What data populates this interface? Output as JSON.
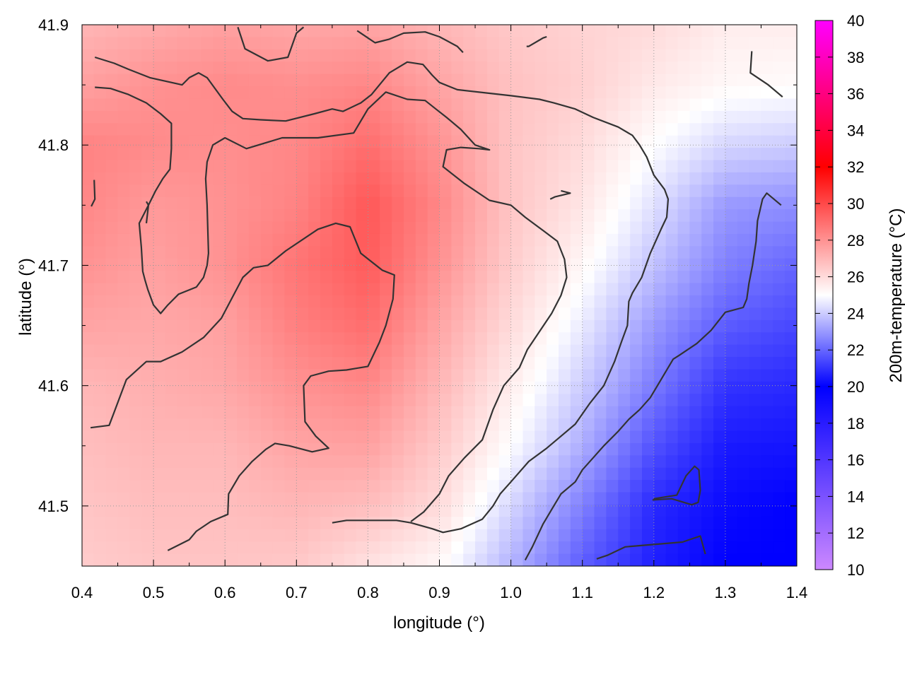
{
  "chart_data": {
    "type": "heatmap",
    "title": "",
    "xlabel": "longitude (°)",
    "ylabel": "latitude (°)",
    "colorbar_label": "200m-temperature (°C)",
    "xlim": [
      0.4,
      1.4
    ],
    "ylim": [
      41.45,
      41.9
    ],
    "x_ticks": [
      0.4,
      0.5,
      0.6,
      0.7,
      0.8,
      0.9,
      1.0,
      1.1,
      1.2,
      1.3,
      1.4
    ],
    "x_tick_labels": [
      "0.4",
      "0.5",
      "0.6",
      "0.7",
      "0.8",
      "0.9",
      "1.0",
      "1.1",
      "1.2",
      "1.3",
      "1.4"
    ],
    "y_ticks": [
      41.5,
      41.6,
      41.7,
      41.8,
      41.9
    ],
    "y_tick_labels": [
      "41.5",
      "41.6",
      "41.7",
      "41.8",
      "41.9"
    ],
    "colorbar_range": [
      10,
      40
    ],
    "colorbar_ticks": [
      10,
      12,
      14,
      16,
      18,
      20,
      22,
      24,
      26,
      28,
      30,
      32,
      34,
      36,
      38,
      40
    ],
    "colorbar_tick_labels": [
      "10",
      "12",
      "14",
      "16",
      "18",
      "20",
      "22",
      "24",
      "26",
      "28",
      "30",
      "32",
      "34",
      "36",
      "38",
      "40"
    ],
    "colorscale": [
      {
        "value": 10,
        "color": "#cc88ff"
      },
      {
        "value": 20,
        "color": "#0000ff"
      },
      {
        "value": 25,
        "color": "#ffffff"
      },
      {
        "value": 32,
        "color": "#ff0000"
      },
      {
        "value": 40,
        "color": "#ff00ff"
      }
    ],
    "grid": true,
    "temperature_field": {
      "lon": [
        0.4,
        0.5,
        0.6,
        0.7,
        0.8,
        0.9,
        1.0,
        1.1,
        1.2,
        1.3,
        1.4
      ],
      "lat": [
        41.9,
        41.85,
        41.8,
        41.75,
        41.7,
        41.65,
        41.6,
        41.55,
        41.5,
        41.45
      ],
      "values": [
        [
          27.0,
          27.3,
          27.6,
          27.4,
          27.5,
          27.0,
          26.5,
          26.2,
          26.0,
          25.5,
          25.5
        ],
        [
          27.6,
          28.0,
          28.2,
          28.1,
          28.3,
          27.5,
          26.7,
          26.3,
          25.6,
          25.2,
          25.1
        ],
        [
          28.4,
          28.2,
          28.1,
          28.3,
          29.0,
          28.0,
          26.6,
          26.0,
          25.0,
          24.2,
          24.0
        ],
        [
          28.3,
          27.8,
          28.0,
          28.4,
          29.6,
          28.3,
          26.6,
          25.7,
          24.4,
          23.0,
          22.8
        ],
        [
          28.0,
          27.6,
          28.0,
          28.8,
          29.5,
          28.0,
          26.4,
          25.2,
          23.8,
          22.5,
          22.0
        ],
        [
          27.5,
          27.4,
          27.6,
          28.5,
          29.0,
          27.5,
          26.0,
          24.6,
          23.0,
          21.8,
          21.4
        ],
        [
          27.0,
          27.2,
          27.4,
          28.0,
          28.3,
          27.0,
          25.5,
          24.0,
          22.4,
          21.0,
          20.8
        ],
        [
          26.8,
          27.0,
          27.0,
          27.5,
          27.6,
          26.5,
          25.0,
          23.4,
          21.6,
          20.5,
          20.4
        ],
        [
          26.6,
          26.8,
          26.8,
          27.0,
          26.8,
          26.0,
          24.2,
          22.5,
          20.8,
          20.2,
          20.0
        ],
        [
          26.4,
          26.6,
          26.6,
          26.5,
          25.8,
          25.2,
          23.5,
          21.8,
          20.6,
          20.0,
          20.0
        ]
      ]
    },
    "contours": [
      [
        [
          0.418,
          41.873
        ],
        [
          0.445,
          41.868
        ],
        [
          0.465,
          41.863
        ],
        [
          0.495,
          41.856
        ],
        [
          0.54,
          41.85
        ],
        [
          0.55,
          41.856
        ],
        [
          0.563,
          41.86
        ],
        [
          0.575,
          41.856
        ],
        [
          0.597,
          41.838
        ],
        [
          0.61,
          41.828
        ],
        [
          0.625,
          41.822
        ],
        [
          0.65,
          41.821
        ],
        [
          0.685,
          41.82
        ],
        [
          0.725,
          41.826
        ],
        [
          0.75,
          41.83
        ],
        [
          0.765,
          41.828
        ],
        [
          0.79,
          41.835
        ],
        [
          0.805,
          41.842
        ],
        [
          0.83,
          41.86
        ],
        [
          0.855,
          41.869
        ],
        [
          0.877,
          41.867
        ],
        [
          0.89,
          41.858
        ],
        [
          0.9,
          41.852
        ],
        [
          0.925,
          41.846
        ],
        [
          0.97,
          41.843
        ],
        [
          1.0,
          41.841
        ],
        [
          1.04,
          41.838
        ],
        [
          1.06,
          41.835
        ],
        [
          1.09,
          41.83
        ],
        [
          1.115,
          41.823
        ],
        [
          1.15,
          41.815
        ],
        [
          1.17,
          41.808
        ],
        [
          1.18,
          41.8
        ],
        [
          1.19,
          41.79
        ],
        [
          1.2,
          41.775
        ],
        [
          1.215,
          41.763
        ],
        [
          1.22,
          41.755
        ],
        [
          1.218,
          41.74
        ],
        [
          1.21,
          41.73
        ],
        [
          1.195,
          41.71
        ],
        [
          1.183,
          41.69
        ],
        [
          1.17,
          41.677
        ],
        [
          1.165,
          41.67
        ],
        [
          1.163,
          41.65
        ],
        [
          1.155,
          41.637
        ],
        [
          1.145,
          41.62
        ],
        [
          1.13,
          41.6
        ],
        [
          1.11,
          41.585
        ],
        [
          1.09,
          41.568
        ],
        [
          1.07,
          41.558
        ],
        [
          1.05,
          41.548
        ],
        [
          1.025,
          41.537
        ],
        [
          1.0,
          41.52
        ],
        [
          0.985,
          41.51
        ],
        [
          0.975,
          41.5
        ],
        [
          0.96,
          41.489
        ],
        [
          0.93,
          41.481
        ],
        [
          0.905,
          41.478
        ],
        [
          0.89,
          41.481
        ],
        [
          0.86,
          41.486
        ],
        [
          0.84,
          41.488
        ],
        [
          0.8,
          41.488
        ],
        [
          0.77,
          41.488
        ],
        [
          0.75,
          41.486
        ]
      ],
      [
        [
          0.418,
          41.848
        ],
        [
          0.44,
          41.847
        ],
        [
          0.465,
          41.842
        ],
        [
          0.49,
          41.835
        ],
        [
          0.51,
          41.826
        ],
        [
          0.525,
          41.818
        ],
        [
          0.525,
          41.797
        ],
        [
          0.523,
          41.78
        ],
        [
          0.513,
          41.772
        ],
        [
          0.503,
          41.762
        ],
        [
          0.493,
          41.75
        ],
        [
          0.48,
          41.735
        ],
        [
          0.483,
          41.715
        ],
        [
          0.485,
          41.695
        ],
        [
          0.488,
          41.688
        ],
        [
          0.492,
          41.68
        ],
        [
          0.5,
          41.667
        ],
        [
          0.51,
          41.66
        ],
        [
          0.52,
          41.667
        ],
        [
          0.535,
          41.676
        ],
        [
          0.56,
          41.682
        ],
        [
          0.57,
          41.69
        ],
        [
          0.575,
          41.7
        ],
        [
          0.577,
          41.71
        ],
        [
          0.575,
          41.75
        ],
        [
          0.573,
          41.772
        ],
        [
          0.575,
          41.786
        ],
        [
          0.583,
          41.8
        ],
        [
          0.6,
          41.806
        ],
        [
          0.63,
          41.797
        ],
        [
          0.68,
          41.806
        ],
        [
          0.73,
          41.806
        ],
        [
          0.78,
          41.81
        ],
        [
          0.8,
          41.83
        ],
        [
          0.825,
          41.844
        ],
        [
          0.855,
          41.838
        ],
        [
          0.88,
          41.837
        ],
        [
          0.895,
          41.83
        ],
        [
          0.91,
          41.823
        ],
        [
          0.93,
          41.813
        ],
        [
          0.95,
          41.8
        ],
        [
          0.97,
          41.796
        ],
        [
          0.955,
          41.797
        ],
        [
          0.93,
          41.798
        ],
        [
          0.91,
          41.796
        ],
        [
          0.905,
          41.782
        ],
        [
          0.935,
          41.768
        ],
        [
          0.97,
          41.754
        ],
        [
          1.0,
          41.75
        ],
        [
          1.02,
          41.74
        ],
        [
          1.045,
          41.729
        ],
        [
          1.065,
          41.72
        ],
        [
          1.075,
          41.705
        ],
        [
          1.078,
          41.69
        ],
        [
          1.07,
          41.675
        ],
        [
          1.057,
          41.66
        ],
        [
          1.04,
          41.645
        ],
        [
          1.023,
          41.63
        ],
        [
          1.012,
          41.615
        ],
        [
          0.99,
          41.6
        ],
        [
          0.975,
          41.58
        ],
        [
          0.96,
          41.555
        ],
        [
          0.935,
          41.54
        ],
        [
          0.913,
          41.525
        ],
        [
          0.9,
          41.51
        ],
        [
          0.878,
          41.495
        ],
        [
          0.86,
          41.487
        ]
      ],
      [
        [
          0.412,
          41.565
        ],
        [
          0.438,
          41.567
        ],
        [
          0.445,
          41.578
        ],
        [
          0.462,
          41.605
        ],
        [
          0.49,
          41.62
        ],
        [
          0.51,
          41.62
        ],
        [
          0.54,
          41.628
        ],
        [
          0.57,
          41.64
        ],
        [
          0.595,
          41.656
        ],
        [
          0.61,
          41.673
        ],
        [
          0.625,
          41.69
        ],
        [
          0.64,
          41.698
        ],
        [
          0.66,
          41.7
        ],
        [
          0.685,
          41.712
        ],
        [
          0.73,
          41.73
        ],
        [
          0.755,
          41.735
        ],
        [
          0.775,
          41.732
        ],
        [
          0.79,
          41.71
        ],
        [
          0.82,
          41.696
        ],
        [
          0.837,
          41.692
        ],
        [
          0.835,
          41.672
        ],
        [
          0.825,
          41.65
        ],
        [
          0.816,
          41.636
        ],
        [
          0.8,
          41.616
        ],
        [
          0.77,
          41.613
        ],
        [
          0.745,
          41.612
        ],
        [
          0.72,
          41.608
        ],
        [
          0.71,
          41.6
        ],
        [
          0.712,
          41.57
        ],
        [
          0.727,
          41.558
        ],
        [
          0.745,
          41.548
        ],
        [
          0.722,
          41.545
        ],
        [
          0.69,
          41.55
        ],
        [
          0.67,
          41.552
        ],
        [
          0.657,
          41.547
        ],
        [
          0.638,
          41.537
        ],
        [
          0.62,
          41.525
        ],
        [
          0.605,
          41.51
        ],
        [
          0.604,
          41.493
        ],
        [
          0.58,
          41.487
        ],
        [
          0.56,
          41.479
        ],
        [
          0.55,
          41.472
        ],
        [
          0.52,
          41.463
        ]
      ],
      [
        [
          0.49,
          41.753
        ],
        [
          0.493,
          41.75
        ],
        [
          0.49,
          41.735
        ]
      ],
      [
        [
          0.417,
          41.771
        ],
        [
          0.418,
          41.755
        ],
        [
          0.413,
          41.749
        ]
      ],
      [
        [
          0.618,
          41.898
        ],
        [
          0.628,
          41.88
        ],
        [
          0.66,
          41.87
        ],
        [
          0.688,
          41.873
        ],
        [
          0.7,
          41.893
        ],
        [
          0.71,
          41.898
        ]
      ],
      [
        [
          0.785,
          41.895
        ],
        [
          0.81,
          41.885
        ],
        [
          0.83,
          41.888
        ],
        [
          0.85,
          41.893
        ],
        [
          0.88,
          41.894
        ],
        [
          0.9,
          41.89
        ],
        [
          0.925,
          41.882
        ],
        [
          0.933,
          41.877
        ]
      ],
      [
        [
          1.022,
          41.882
        ],
        [
          1.025,
          41.882
        ],
        [
          1.045,
          41.889
        ],
        [
          1.05,
          41.89
        ]
      ],
      [
        [
          1.337,
          41.878
        ],
        [
          1.335,
          41.86
        ],
        [
          1.36,
          41.85
        ],
        [
          1.38,
          41.84
        ]
      ],
      [
        [
          1.055,
          41.755
        ],
        [
          1.062,
          41.757
        ],
        [
          1.083,
          41.76
        ],
        [
          1.07,
          41.762
        ]
      ],
      [
        [
          1.02,
          41.455
        ],
        [
          1.03,
          41.466
        ],
        [
          1.045,
          41.485
        ],
        [
          1.058,
          41.498
        ],
        [
          1.07,
          41.51
        ],
        [
          1.09,
          41.52
        ],
        [
          1.1,
          41.53
        ],
        [
          1.115,
          41.54
        ],
        [
          1.13,
          41.55
        ],
        [
          1.15,
          41.562
        ],
        [
          1.165,
          41.572
        ],
        [
          1.18,
          41.58
        ],
        [
          1.195,
          41.59
        ],
        [
          1.21,
          41.605
        ],
        [
          1.227,
          41.622
        ],
        [
          1.235,
          41.625
        ],
        [
          1.26,
          41.635
        ],
        [
          1.28,
          41.646
        ],
        [
          1.3,
          41.661
        ],
        [
          1.325,
          41.665
        ],
        [
          1.33,
          41.672
        ],
        [
          1.333,
          41.685
        ],
        [
          1.338,
          41.7
        ],
        [
          1.343,
          41.72
        ],
        [
          1.345,
          41.737
        ],
        [
          1.352,
          41.755
        ],
        [
          1.358,
          41.76
        ],
        [
          1.378,
          41.75
        ]
      ],
      [
        [
          1.12,
          41.456
        ],
        [
          1.135,
          41.459
        ],
        [
          1.16,
          41.466
        ],
        [
          1.2,
          41.468
        ],
        [
          1.24,
          41.47
        ],
        [
          1.265,
          41.475
        ],
        [
          1.272,
          41.46
        ]
      ],
      [
        [
          1.198,
          41.505
        ],
        [
          1.225,
          41.506
        ],
        [
          1.253,
          41.501
        ],
        [
          1.262,
          41.503
        ],
        [
          1.265,
          41.513
        ],
        [
          1.263,
          41.53
        ],
        [
          1.257,
          41.533
        ],
        [
          1.245,
          41.525
        ],
        [
          1.232,
          41.509
        ],
        [
          1.2,
          41.506
        ]
      ]
    ]
  }
}
